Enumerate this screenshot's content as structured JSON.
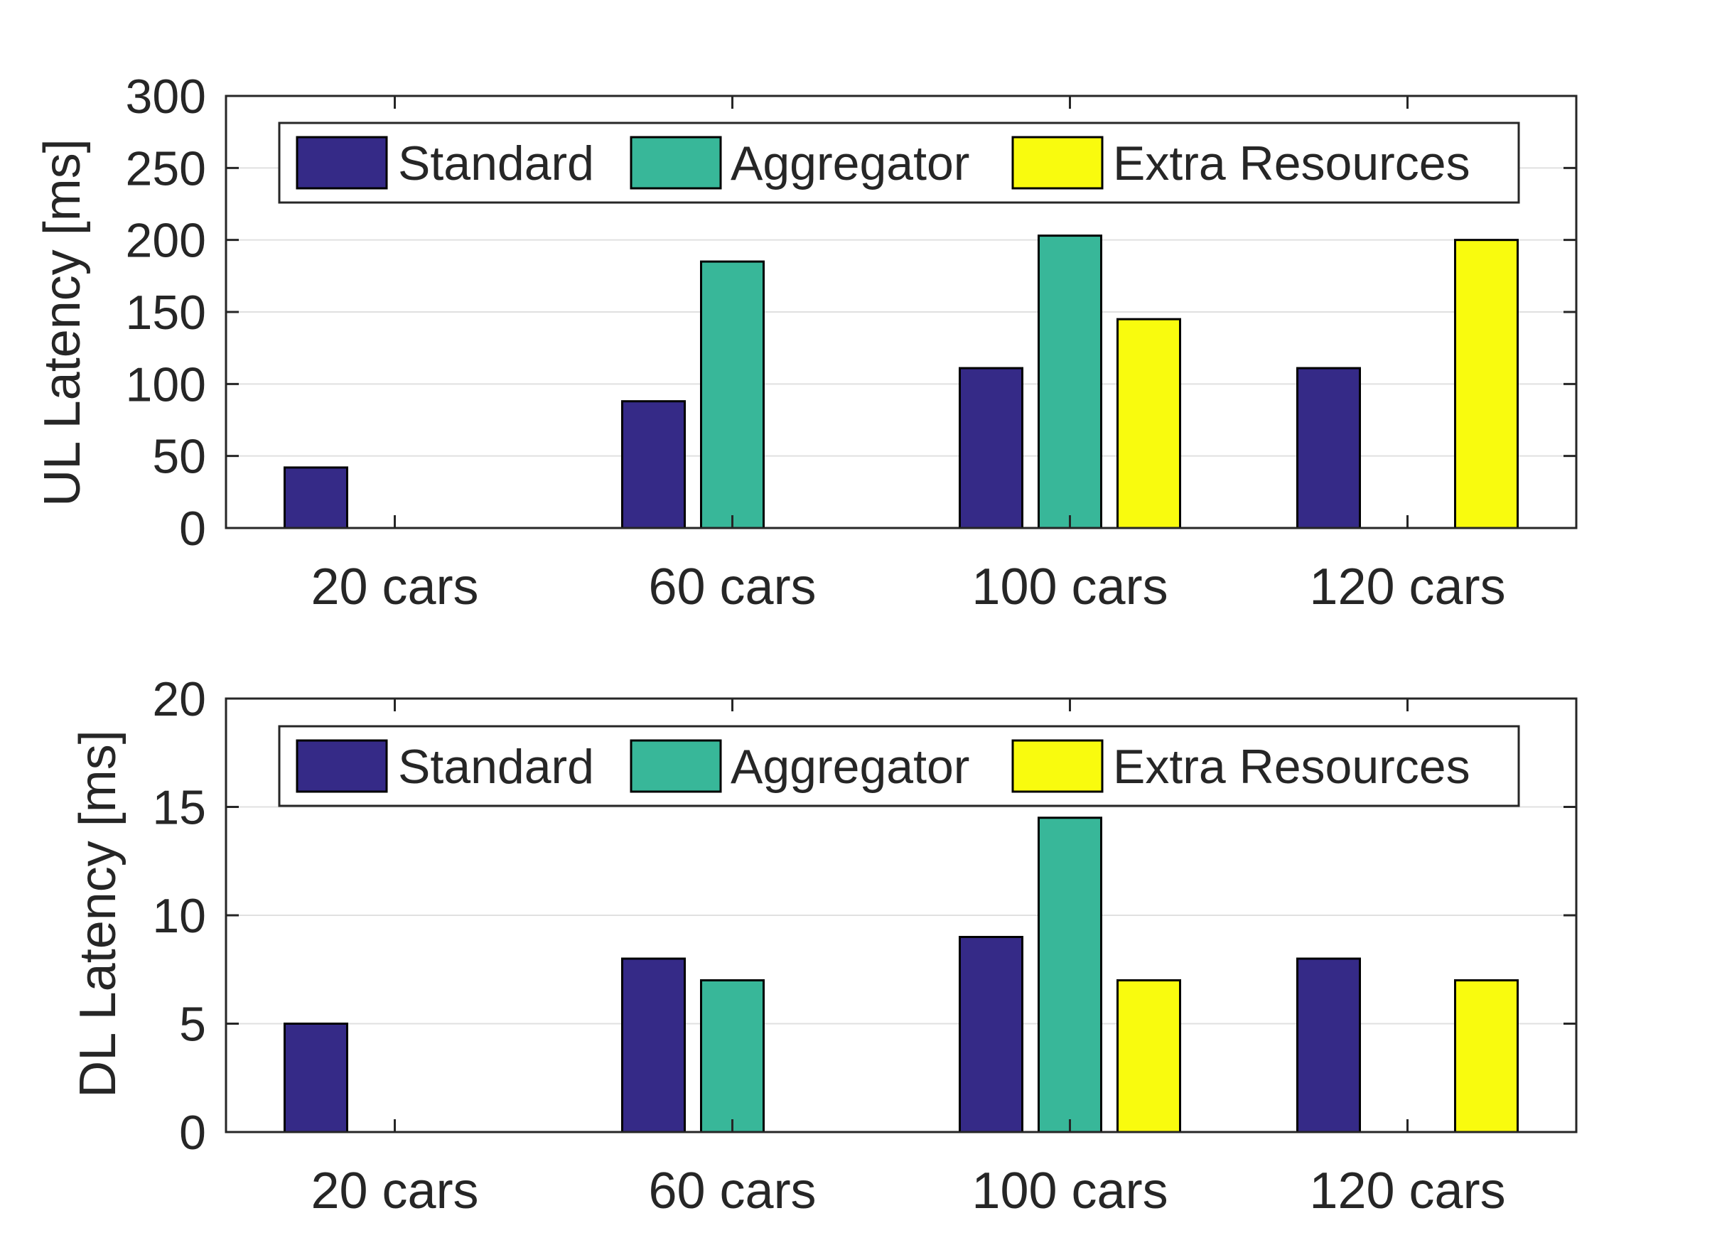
{
  "colors": {
    "standard": "#352a87",
    "aggregator": "#38b799",
    "extra_resources": "#f9fb0e",
    "edge": "#000000",
    "axis": "#262626",
    "grid": "#e0e0e0"
  },
  "chart_data": [
    {
      "type": "bar",
      "title": "",
      "xlabel": "",
      "ylabel": "UL Latency [ms]",
      "ylim": [
        0,
        300
      ],
      "yticks": [
        0,
        50,
        100,
        150,
        200,
        250,
        300
      ],
      "grid": true,
      "legend_position": "top",
      "categories": [
        "20 cars",
        "60 cars",
        "100 cars",
        "120 cars"
      ],
      "series": [
        {
          "name": "Standard",
          "color_key": "standard",
          "values": [
            42,
            88,
            111,
            111
          ]
        },
        {
          "name": "Aggregator",
          "color_key": "aggregator",
          "values": [
            0,
            185,
            203,
            0
          ]
        },
        {
          "name": "Extra Resources",
          "color_key": "extra_resources",
          "values": [
            0,
            0,
            145,
            200
          ]
        }
      ]
    },
    {
      "type": "bar",
      "title": "",
      "xlabel": "",
      "ylabel": "DL Latency [ms]",
      "ylim": [
        0,
        20
      ],
      "yticks": [
        0,
        5,
        10,
        15,
        20
      ],
      "grid": true,
      "legend_position": "top",
      "categories": [
        "20 cars",
        "60 cars",
        "100 cars",
        "120 cars"
      ],
      "series": [
        {
          "name": "Standard",
          "color_key": "standard",
          "values": [
            5,
            8,
            9,
            8
          ]
        },
        {
          "name": "Aggregator",
          "color_key": "aggregator",
          "values": [
            0,
            7,
            14.5,
            0
          ]
        },
        {
          "name": "Extra Resources",
          "color_key": "extra_resources",
          "values": [
            0,
            0,
            7,
            7
          ]
        }
      ]
    }
  ]
}
